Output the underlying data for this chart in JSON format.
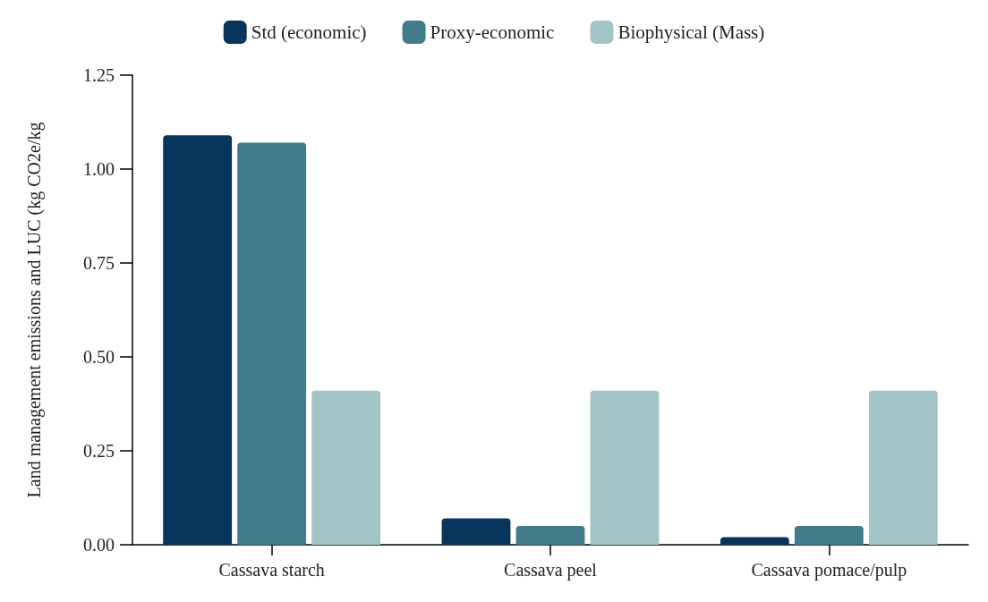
{
  "chart_data": {
    "type": "bar",
    "ylabel": "Land management emissions and LUC (kg CO2e/kg",
    "categories": [
      "Cassava starch",
      "Cassava peel",
      "Cassava pomace/pulp"
    ],
    "series": [
      {
        "name": "Std (economic)",
        "color": "#08355c",
        "values": [
          1.09,
          0.07,
          0.02
        ]
      },
      {
        "name": "Proxy-economic",
        "color": "#427b8a",
        "values": [
          1.07,
          0.05,
          0.05
        ]
      },
      {
        "name": "Biophysical (Mass)",
        "color": "#a3c4c7",
        "values": [
          0.41,
          0.41,
          0.41
        ]
      }
    ],
    "ylim": [
      0,
      1.25
    ],
    "yticks": [
      {
        "value": 0,
        "label": "0.00"
      },
      {
        "value": 0.25,
        "label": "0.25"
      },
      {
        "value": 0.5,
        "label": "0.50"
      },
      {
        "value": 0.75,
        "label": "0.75"
      },
      {
        "value": 1,
        "label": "1.00"
      },
      {
        "value": 1.25,
        "label": "1.25"
      }
    ],
    "grid": false,
    "legend": "top"
  }
}
